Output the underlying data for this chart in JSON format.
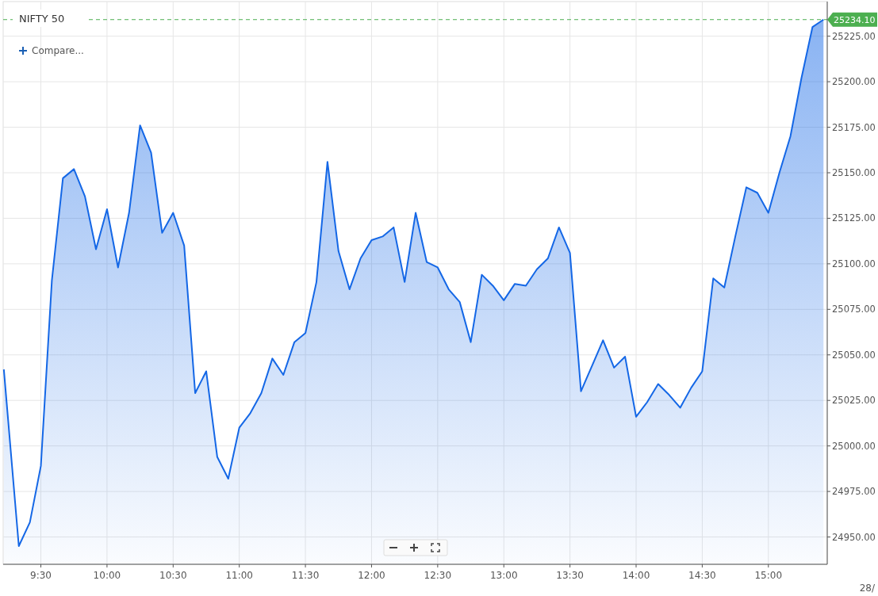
{
  "chart_data": {
    "type": "area",
    "title": "NIFTY 50",
    "annotations": [
      "Compare...",
      "28/"
    ],
    "x": [
      9.22,
      9.3333,
      9.4167,
      9.5,
      9.5833,
      9.6667,
      9.75,
      9.8333,
      9.9167,
      10,
      10.0833,
      10.1667,
      10.25,
      10.3333,
      10.4167,
      10.5,
      10.5833,
      10.6667,
      10.75,
      10.8333,
      10.9167,
      11,
      11.0833,
      11.1667,
      11.25,
      11.3333,
      11.4167,
      11.5,
      11.5833,
      11.6667,
      11.75,
      11.8333,
      11.9167,
      12,
      12.0833,
      12.1667,
      12.25,
      12.3333,
      12.4167,
      12.5,
      12.5833,
      12.6667,
      12.75,
      12.8333,
      12.9167,
      13,
      13.0833,
      13.1667,
      13.25,
      13.3333,
      13.4167,
      13.5,
      13.5833,
      13.6667,
      13.75,
      13.8333,
      13.9167,
      14,
      14.0833,
      14.1667,
      14.25,
      14.3333,
      14.4167,
      14.5,
      14.5833,
      14.6667,
      14.75,
      14.8333,
      14.9167,
      15,
      15.0833,
      15.1667,
      15.25,
      15.3333,
      15.4167
    ],
    "series": [
      {
        "color": "#1467e6",
        "values": [
          25042,
          24945,
          24958,
          24989,
          25091,
          25147,
          25152,
          25137,
          25108,
          25130,
          25098,
          25128,
          25176,
          25161,
          25117,
          25128,
          25110,
          25029,
          25041,
          24994,
          24982,
          25010,
          25018,
          25029,
          25048,
          25039,
          25057,
          25062,
          25090,
          25156,
          25107,
          25086,
          25103,
          25113,
          25115,
          25120,
          25090,
          25128,
          25101,
          25098,
          25086,
          25079,
          25057,
          25094,
          25088,
          25080,
          25089,
          25088,
          25097,
          25103,
          25120,
          25106,
          25030,
          25044,
          25058,
          25043,
          25049,
          25016,
          25024,
          25034,
          25028,
          25021,
          25032,
          25041,
          25092,
          25087,
          25115,
          25142,
          25139,
          25128,
          25150,
          25170,
          25202,
          25230,
          25234.1
        ]
      }
    ],
    "xlim": [
      9.215,
      15.445
    ],
    "ylim": [
      24935,
      25244
    ],
    "xticks": [
      {
        "value": 9.5,
        "label": "9:30"
      },
      {
        "value": 10,
        "label": "10:00"
      },
      {
        "value": 10.5,
        "label": "10:30"
      },
      {
        "value": 11,
        "label": "11:00"
      },
      {
        "value": 11.5,
        "label": "11:30"
      },
      {
        "value": 12,
        "label": "12:00"
      },
      {
        "value": 12.5,
        "label": "12:30"
      },
      {
        "value": 13,
        "label": "13:00"
      },
      {
        "value": 13.5,
        "label": "13:30"
      },
      {
        "value": 14,
        "label": "14:00"
      },
      {
        "value": 14.5,
        "label": "14:30"
      },
      {
        "value": 15,
        "label": "15:00"
      }
    ],
    "yticks": [
      {
        "value": 24950,
        "label": "24950.00"
      },
      {
        "value": 24975,
        "label": "24975.00"
      },
      {
        "value": 25000,
        "label": "25000.00"
      },
      {
        "value": 25025,
        "label": "25025.00"
      },
      {
        "value": 25050,
        "label": "25050.00"
      },
      {
        "value": 25075,
        "label": "25075.00"
      },
      {
        "value": 25100,
        "label": "25100.00"
      },
      {
        "value": 25125,
        "label": "25125.00"
      },
      {
        "value": 25150,
        "label": "25150.00"
      },
      {
        "value": 25175,
        "label": "25175.00"
      },
      {
        "value": 25200,
        "label": "25200.00"
      },
      {
        "value": 25225,
        "label": "25225.00"
      }
    ],
    "ref_lines": [
      {
        "axis": "y",
        "value": 25234.1,
        "label": "25234.10",
        "color": "#4caf50",
        "line_style": "dashed"
      }
    ],
    "grid": true,
    "marker": "none",
    "line_style": "solid"
  }
}
